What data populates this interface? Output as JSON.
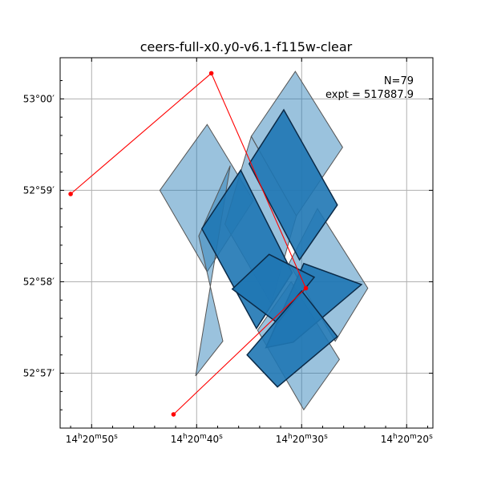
{
  "chart_data": {
    "type": "footprint",
    "title": "ceers-full-x0.y0-v6.1-f115w-clear",
    "xlabel": "",
    "ylabel": "",
    "grid": true,
    "ra_axis": {
      "direction": "decreasing",
      "lim_s": [
        53.0,
        17.5
      ],
      "ticks": [
        {
          "value_s": 50,
          "label": {
            "h": "14",
            "m": "20",
            "s": "50"
          }
        },
        {
          "value_s": 40,
          "label": {
            "h": "14",
            "m": "20",
            "s": "40"
          }
        },
        {
          "value_s": 30,
          "label": {
            "h": "14",
            "m": "20",
            "s": "30"
          }
        },
        {
          "value_s": 20,
          "label": {
            "h": "14",
            "m": "20",
            "s": "20"
          }
        }
      ]
    },
    "dec_axis": {
      "lim_arcmin": [
        56.4,
        60.45
      ],
      "ticks": [
        {
          "value_arcmin": 57,
          "label": "52°57′"
        },
        {
          "value_arcmin": 58,
          "label": "52°58′"
        },
        {
          "value_arcmin": 59,
          "label": "52°59′"
        },
        {
          "value_arcmin": 60,
          "label": "53°00′"
        }
      ]
    },
    "annotations": {
      "n": "N=79",
      "expt": "expt = 517887.9"
    },
    "footprints": {
      "color_dense": "#1f77b4",
      "edge_color": "#555555",
      "outer_regions": [
        {
          "corners": [
            [
              30.6,
              60.3
            ],
            [
              26.1,
              59.47
            ],
            [
              30.5,
              58.72
            ],
            [
              34.8,
              59.59
            ]
          ],
          "alpha": 0.45
        },
        {
          "corners": [
            [
              39.0,
              59.72
            ],
            [
              34.6,
              58.89
            ],
            [
              39.0,
              58.11
            ],
            [
              43.5,
              59.0
            ]
          ],
          "alpha": 0.45
        },
        {
          "corners": [
            [
              36.8,
              59.27
            ],
            [
              39.8,
              58.5
            ],
            [
              37.5,
              57.35
            ],
            [
              40.1,
              56.97
            ]
          ],
          "alpha": 0.45
        },
        {
          "corners": [
            [
              34.8,
              59.59
            ],
            [
              30.5,
              58.72
            ],
            [
              32.9,
              57.76
            ],
            [
              37.3,
              58.63
            ]
          ],
          "alpha": 0.45
        },
        {
          "corners": [
            [
              31.0,
              58.0
            ],
            [
              26.4,
              57.15
            ],
            [
              29.8,
              56.6
            ],
            [
              34.2,
              57.47
            ]
          ],
          "alpha": 0.45
        },
        {
          "corners": [
            [
              28.5,
              58.8
            ],
            [
              23.7,
              57.93
            ],
            [
              26.8,
              57.35
            ],
            [
              31.2,
              58.2
            ]
          ],
          "alpha": 0.45
        }
      ],
      "dense_regions": [
        {
          "corners": [
            [
              31.7,
              59.88
            ],
            [
              26.6,
              58.84
            ],
            [
              30.2,
              58.24
            ],
            [
              35.0,
              59.29
            ]
          ],
          "alpha": 0.9
        },
        {
          "corners": [
            [
              35.8,
              59.22
            ],
            [
              30.9,
              58.1
            ],
            [
              34.3,
              57.49
            ],
            [
              39.5,
              58.58
            ]
          ],
          "alpha": 0.9
        },
        {
          "corners": [
            [
              29.8,
              58.2
            ],
            [
              24.3,
              57.97
            ],
            [
              30.8,
              57.34
            ],
            [
              33.4,
              57.28
            ]
          ],
          "alpha": 0.9
        },
        {
          "corners": [
            [
              33.1,
              58.3
            ],
            [
              28.8,
              58.05
            ],
            [
              32.3,
              57.55
            ],
            [
              36.6,
              57.92
            ]
          ],
          "alpha": 0.9
        },
        {
          "corners": [
            [
              30.0,
              57.9
            ],
            [
              26.6,
              57.4
            ],
            [
              32.3,
              56.85
            ],
            [
              35.2,
              57.2
            ]
          ],
          "alpha": 0.9
        }
      ]
    },
    "track": {
      "color": "#ff0000",
      "points": [
        {
          "ra_s": 42.2,
          "dec_arcmin": 56.55
        },
        {
          "ra_s": 29.6,
          "dec_arcmin": 57.93
        },
        {
          "ra_s": 38.6,
          "dec_arcmin": 60.28
        },
        {
          "ra_s": 52.0,
          "dec_arcmin": 58.96
        }
      ]
    }
  }
}
